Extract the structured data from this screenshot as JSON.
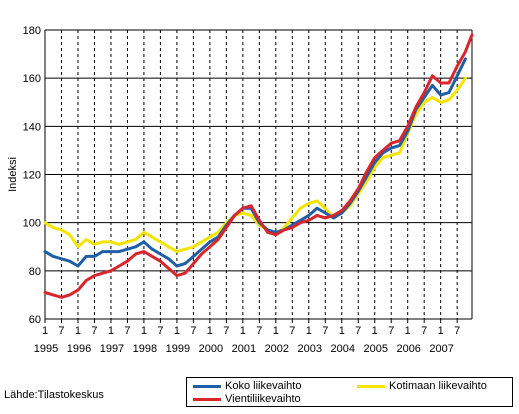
{
  "chart_data": {
    "type": "line",
    "xlabel": "",
    "ylabel": "Indeksi",
    "ylim": [
      60,
      180
    ],
    "yticks": [
      60,
      80,
      100,
      120,
      140,
      160,
      180
    ],
    "xlim": [
      1995,
      2007.95
    ],
    "year_labels": [
      "1995",
      "1996",
      "1997",
      "1998",
      "1999",
      "2000",
      "2001",
      "2002",
      "2003",
      "2004",
      "2005",
      "2006",
      "2007"
    ],
    "month_labels": [
      "1",
      "7"
    ],
    "grid": true,
    "legend_position": "bottom-right",
    "series": [
      {
        "name": "Koko liikevaihto",
        "color": "#1f5fa6",
        "points": [
          [
            1995.0,
            88
          ],
          [
            1995.25,
            86
          ],
          [
            1995.5,
            85
          ],
          [
            1995.75,
            84
          ],
          [
            1996.0,
            82
          ],
          [
            1996.25,
            86
          ],
          [
            1996.5,
            86
          ],
          [
            1996.75,
            88
          ],
          [
            1997.0,
            88
          ],
          [
            1997.25,
            88
          ],
          [
            1997.5,
            89
          ],
          [
            1997.75,
            90
          ],
          [
            1998.0,
            92
          ],
          [
            1998.25,
            89
          ],
          [
            1998.5,
            87
          ],
          [
            1998.75,
            85
          ],
          [
            1999.0,
            82
          ],
          [
            1999.25,
            83
          ],
          [
            1999.5,
            86
          ],
          [
            1999.75,
            89
          ],
          [
            2000.0,
            92
          ],
          [
            2000.25,
            94
          ],
          [
            2000.5,
            99
          ],
          [
            2000.75,
            103
          ],
          [
            2001.0,
            106
          ],
          [
            2001.25,
            106
          ],
          [
            2001.5,
            100
          ],
          [
            2001.75,
            97
          ],
          [
            2002.0,
            96
          ],
          [
            2002.25,
            97
          ],
          [
            2002.5,
            99
          ],
          [
            2002.75,
            101
          ],
          [
            2003.0,
            103
          ],
          [
            2003.25,
            106
          ],
          [
            2003.5,
            104
          ],
          [
            2003.75,
            102
          ],
          [
            2004.0,
            104
          ],
          [
            2004.25,
            108
          ],
          [
            2004.5,
            113
          ],
          [
            2004.75,
            119
          ],
          [
            2005.0,
            125
          ],
          [
            2005.25,
            129
          ],
          [
            2005.5,
            131
          ],
          [
            2005.75,
            132
          ],
          [
            2006.0,
            138
          ],
          [
            2006.25,
            147
          ],
          [
            2006.5,
            152
          ],
          [
            2006.75,
            157
          ],
          [
            2007.0,
            153
          ],
          [
            2007.25,
            154
          ],
          [
            2007.5,
            161
          ],
          [
            2007.75,
            168
          ]
        ]
      },
      {
        "name": "Kotimaan liikevaihto",
        "color": "#f5e300",
        "points": [
          [
            1995.0,
            100
          ],
          [
            1995.25,
            98
          ],
          [
            1995.5,
            97
          ],
          [
            1995.75,
            95
          ],
          [
            1996.0,
            90
          ],
          [
            1996.25,
            93
          ],
          [
            1996.5,
            91
          ],
          [
            1996.75,
            92
          ],
          [
            1997.0,
            92
          ],
          [
            1997.25,
            91
          ],
          [
            1997.5,
            92
          ],
          [
            1997.75,
            93
          ],
          [
            1998.0,
            96
          ],
          [
            1998.25,
            94
          ],
          [
            1998.5,
            92
          ],
          [
            1998.75,
            90
          ],
          [
            1999.0,
            88
          ],
          [
            1999.25,
            89
          ],
          [
            1999.5,
            90
          ],
          [
            1999.75,
            92
          ],
          [
            2000.0,
            94
          ],
          [
            2000.25,
            96
          ],
          [
            2000.5,
            100
          ],
          [
            2000.75,
            103
          ],
          [
            2001.0,
            104
          ],
          [
            2001.25,
            103
          ],
          [
            2001.5,
            99
          ],
          [
            2001.75,
            97
          ],
          [
            2002.0,
            95
          ],
          [
            2002.25,
            98
          ],
          [
            2002.5,
            102
          ],
          [
            2002.75,
            106
          ],
          [
            2003.0,
            108
          ],
          [
            2003.25,
            109
          ],
          [
            2003.5,
            106
          ],
          [
            2003.75,
            102
          ],
          [
            2004.0,
            104
          ],
          [
            2004.25,
            107
          ],
          [
            2004.5,
            112
          ],
          [
            2004.75,
            117
          ],
          [
            2005.0,
            123
          ],
          [
            2005.25,
            127
          ],
          [
            2005.5,
            128
          ],
          [
            2005.75,
            129
          ],
          [
            2006.0,
            137
          ],
          [
            2006.25,
            145
          ],
          [
            2006.5,
            150
          ],
          [
            2006.75,
            152
          ],
          [
            2007.0,
            150
          ],
          [
            2007.25,
            151
          ],
          [
            2007.5,
            155
          ],
          [
            2007.75,
            160
          ]
        ]
      },
      {
        "name": "Vientiliikevaihto",
        "color": "#d8262d",
        "points": [
          [
            1995.0,
            71
          ],
          [
            1995.25,
            70
          ],
          [
            1995.5,
            69
          ],
          [
            1995.75,
            70
          ],
          [
            1996.0,
            72
          ],
          [
            1996.25,
            76
          ],
          [
            1996.5,
            78
          ],
          [
            1996.75,
            79
          ],
          [
            1997.0,
            80
          ],
          [
            1997.25,
            82
          ],
          [
            1997.5,
            84
          ],
          [
            1997.75,
            87
          ],
          [
            1998.0,
            88
          ],
          [
            1998.25,
            86
          ],
          [
            1998.5,
            84
          ],
          [
            1998.75,
            81
          ],
          [
            1999.0,
            78
          ],
          [
            1999.25,
            79
          ],
          [
            1999.5,
            83
          ],
          [
            1999.75,
            87
          ],
          [
            2000.0,
            90
          ],
          [
            2000.25,
            93
          ],
          [
            2000.5,
            98
          ],
          [
            2000.75,
            103
          ],
          [
            2001.0,
            106
          ],
          [
            2001.25,
            107
          ],
          [
            2001.5,
            101
          ],
          [
            2001.75,
            96
          ],
          [
            2002.0,
            95
          ],
          [
            2002.25,
            97
          ],
          [
            2002.5,
            98
          ],
          [
            2002.75,
            100
          ],
          [
            2003.0,
            101
          ],
          [
            2003.25,
            103
          ],
          [
            2003.5,
            102
          ],
          [
            2003.75,
            103
          ],
          [
            2004.0,
            105
          ],
          [
            2004.25,
            109
          ],
          [
            2004.5,
            114
          ],
          [
            2004.75,
            121
          ],
          [
            2005.0,
            127
          ],
          [
            2005.25,
            130
          ],
          [
            2005.5,
            133
          ],
          [
            2005.75,
            134
          ],
          [
            2006.0,
            140
          ],
          [
            2006.25,
            148
          ],
          [
            2006.5,
            154
          ],
          [
            2006.75,
            161
          ],
          [
            2007.0,
            158
          ],
          [
            2007.25,
            158
          ],
          [
            2007.5,
            165
          ],
          [
            2007.75,
            171
          ],
          [
            2007.95,
            178
          ]
        ]
      }
    ]
  },
  "legend": {
    "items": [
      {
        "label": "Koko liikevaihto",
        "color": "#1f5fa6"
      },
      {
        "label": "Kotimaan liikevaihto",
        "color": "#f5e300"
      },
      {
        "label": "Vientiliikevaihto",
        "color": "#d8262d"
      }
    ]
  },
  "source_text": "Lähde:Tilastokeskus"
}
